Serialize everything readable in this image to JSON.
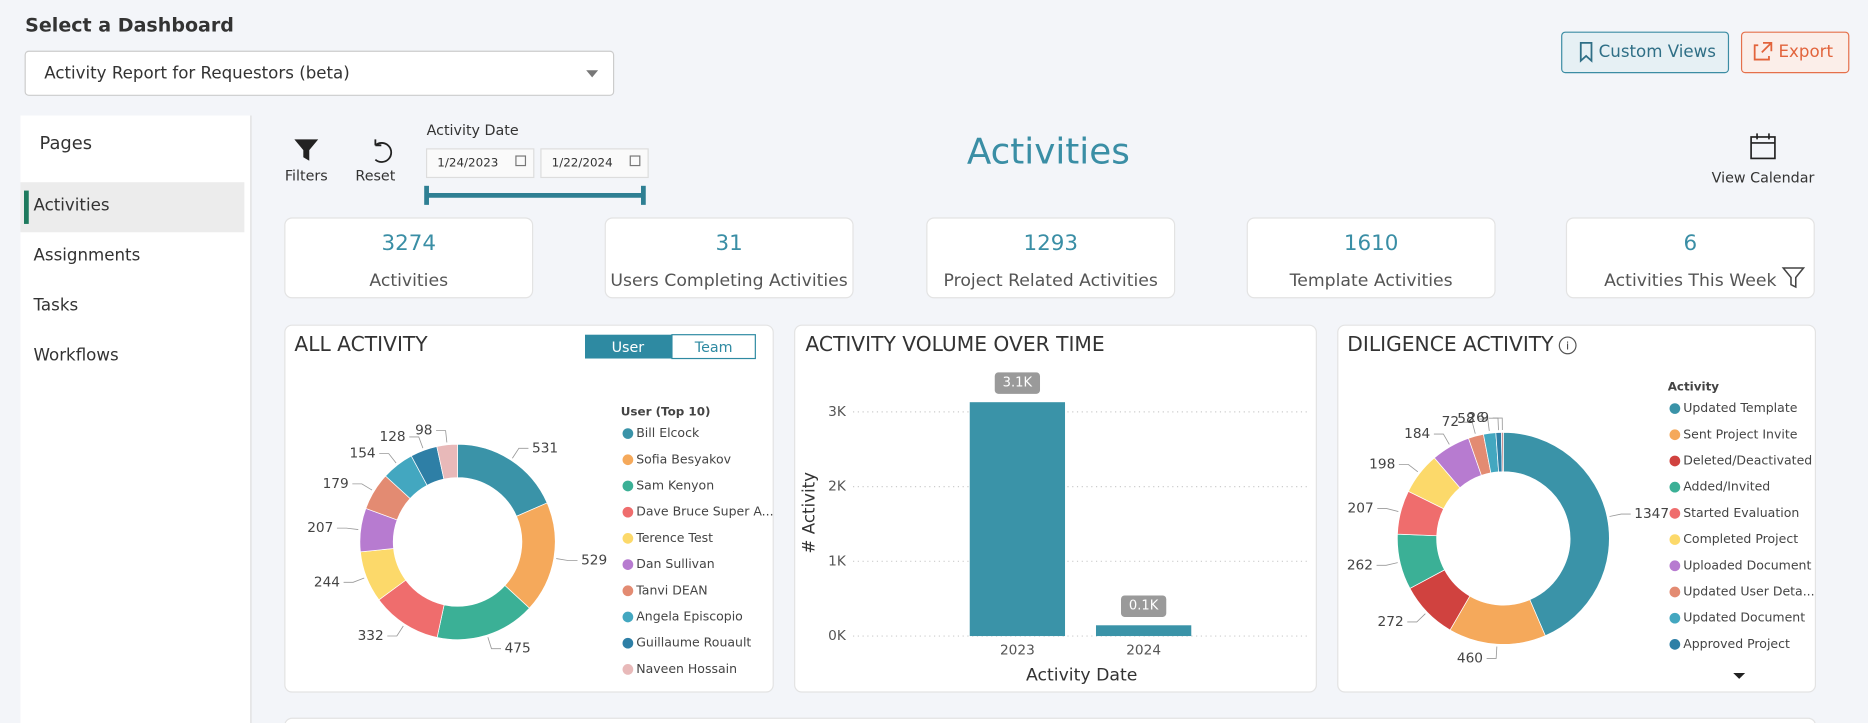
{
  "header": {
    "title": "Select a Dashboard",
    "dashboard": "Activity Report for Requestors (beta)",
    "custom_views": "Custom Views",
    "export": "Export"
  },
  "sidebar": {
    "title": "Pages",
    "items": [
      "Activities",
      "Assignments",
      "Tasks",
      "Workflows"
    ]
  },
  "toolbar": {
    "filters": "Filters",
    "reset": "Reset",
    "date_label": "Activity Date",
    "start_date": "1/24/2023",
    "end_date": "1/22/2024",
    "page_title": "Activities",
    "calendar": "View Calendar"
  },
  "kpis": [
    {
      "value": 3274,
      "label": "Activities"
    },
    {
      "value": 31,
      "label": "Users Completing Activities"
    },
    {
      "value": 1293,
      "label": "Project Related Activities"
    },
    {
      "value": 1610,
      "label": "Template Activities"
    },
    {
      "value": 6,
      "label": "Activities This Week"
    }
  ],
  "all_activity": {
    "type": "donut",
    "title": "ALL ACTIVITY",
    "toggle": [
      "User",
      "Team"
    ],
    "legend_title": "User (Top 10)",
    "categories": [
      "Bill Elcock",
      "Sofia Besyakov",
      "Sam Kenyon",
      "Dave Bruce Super A...",
      "Terence Test",
      "Dan Sullivan",
      "Tanvi DEAN",
      "Angela Episcopio",
      "Guillaume Rouault",
      "Naveen Hossain"
    ],
    "values": [
      531,
      529,
      475,
      332,
      244,
      207,
      179,
      154,
      128,
      98
    ],
    "colors": [
      "#3a93a8",
      "#f5a95b",
      "#3bb096",
      "#ef6d6d",
      "#fcd96a",
      "#b77bd0",
      "#e38b72",
      "#43a7c0",
      "#2e7fa6",
      "#e8b9b9"
    ]
  },
  "volume": {
    "type": "bar",
    "title": "ACTIVITY VOLUME OVER TIME",
    "x_label": "Activity Date",
    "y_label": "# Activity",
    "categories": [
      "2023",
      "2024"
    ],
    "values": [
      3130,
      144
    ],
    "value_labels": [
      "3.1K",
      "0.1K"
    ],
    "color": "#3a93a8",
    "ylim": [
      0,
      3300
    ],
    "yticks": [
      {
        "value": 0,
        "label": "0K"
      },
      {
        "value": 1000,
        "label": "1K"
      },
      {
        "value": 2000,
        "label": "2K"
      },
      {
        "value": 3000,
        "label": "3K"
      }
    ],
    "grid": true
  },
  "diligence": {
    "type": "donut",
    "title": "DILIGENCE ACTIVITY",
    "legend_title": "Activity",
    "categories": [
      "Updated Template",
      "Sent Project Invite",
      "Deleted/Deactivated",
      "Added/Invited",
      "Started Evaluation",
      "Completed Project",
      "Uploaded Document",
      "Updated User Deta...",
      "Updated Document",
      "Approved Project",
      null
    ],
    "values": [
      1347,
      460,
      272,
      262,
      207,
      198,
      184,
      72,
      58,
      26,
      9
    ],
    "colors": [
      "#3a93a8",
      "#f5a95b",
      "#d0423f",
      "#3bb096",
      "#ef6d6d",
      "#fcd96a",
      "#b77bd0",
      "#e38b72",
      "#43a7c0",
      "#2e7fa6",
      "#c98f8f"
    ]
  }
}
